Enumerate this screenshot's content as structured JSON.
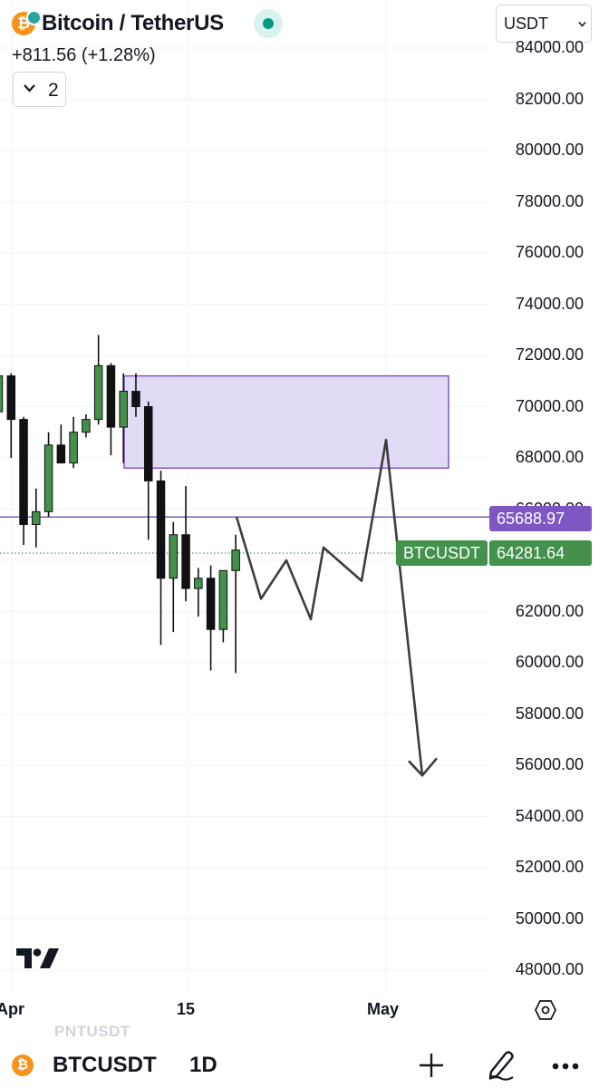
{
  "header": {
    "title": "Bitcoin / TetherUS",
    "coin_icon_glyph": "₿",
    "change": "+811.56 (+1.28%)",
    "indicator_count": "2",
    "currency": "USDT"
  },
  "price_axis": {
    "ticks": [
      "84000.00",
      "82000.00",
      "80000.00",
      "78000.00",
      "76000.00",
      "74000.00",
      "72000.00",
      "70000.00",
      "68000.00",
      "66000.00",
      "64000.00",
      "62000.00",
      "60000.00",
      "58000.00",
      "56000.00",
      "54000.00",
      "52000.00",
      "50000.00",
      "48000.00"
    ]
  },
  "time_axis": {
    "ticks": [
      "Apr",
      "15",
      "May"
    ]
  },
  "tags": {
    "line_price": "65688.97",
    "symbol": "BTCUSDT",
    "last_price": "64281.64"
  },
  "bottom_bar": {
    "ghost_symbol": "PNTUSDT",
    "symbol": "BTCUSDT",
    "interval": "1D"
  },
  "colors": {
    "up": "#43914a",
    "down": "#111111",
    "zone_fill": "#dcd5f5",
    "zone_border": "#7e57c2",
    "line_tag": "#7e57c2",
    "last_price_tag": "#43914a",
    "accent_teal": "#089981",
    "coin": "#f7931a"
  },
  "icons": [
    "bitcoin-icon",
    "status-dot-icon",
    "chevron-down-icon",
    "tradingview-logo-icon",
    "settings-hexagon-icon",
    "plus-icon",
    "pencil-icon",
    "more-dots-icon"
  ],
  "chart_data": {
    "type": "candlestick",
    "title": "Bitcoin / TetherUS",
    "interval": "1D",
    "ylim": [
      47200,
      84600
    ],
    "y_ticks": [
      48000,
      50000,
      52000,
      54000,
      56000,
      58000,
      60000,
      62000,
      64000,
      66000,
      68000,
      70000,
      72000,
      74000,
      76000,
      78000,
      80000,
      82000,
      84000
    ],
    "x_ticks": [
      "Apr",
      "15",
      "May"
    ],
    "candles": [
      {
        "o": 69800,
        "h": 71300,
        "l": 68500,
        "c": 71200
      },
      {
        "o": 71200,
        "h": 71300,
        "l": 68000,
        "c": 69500
      },
      {
        "o": 69500,
        "h": 69600,
        "l": 64600,
        "c": 65400
      },
      {
        "o": 65400,
        "h": 66800,
        "l": 64500,
        "c": 65900
      },
      {
        "o": 65900,
        "h": 69000,
        "l": 65700,
        "c": 68500
      },
      {
        "o": 68500,
        "h": 69300,
        "l": 67800,
        "c": 67800
      },
      {
        "o": 67800,
        "h": 69600,
        "l": 67600,
        "c": 69000
      },
      {
        "o": 69000,
        "h": 69700,
        "l": 68800,
        "c": 69500
      },
      {
        "o": 69500,
        "h": 72800,
        "l": 69300,
        "c": 71600
      },
      {
        "o": 71600,
        "h": 71700,
        "l": 68100,
        "c": 69200
      },
      {
        "o": 69200,
        "h": 71300,
        "l": 67800,
        "c": 70600
      },
      {
        "o": 70600,
        "h": 71300,
        "l": 69600,
        "c": 70000
      },
      {
        "o": 70000,
        "h": 70200,
        "l": 64800,
        "c": 67100
      },
      {
        "o": 67100,
        "h": 67500,
        "l": 60700,
        "c": 63300
      },
      {
        "o": 63300,
        "h": 65500,
        "l": 61200,
        "c": 65000
      },
      {
        "o": 65000,
        "h": 66900,
        "l": 62400,
        "c": 62900
      },
      {
        "o": 62900,
        "h": 63700,
        "l": 61800,
        "c": 63300
      },
      {
        "o": 63300,
        "h": 63800,
        "l": 59700,
        "c": 61300
      },
      {
        "o": 61300,
        "h": 63400,
        "l": 60800,
        "c": 63600
      },
      {
        "o": 63600,
        "h": 65000,
        "l": 59600,
        "c": 64400
      }
    ],
    "zone": {
      "y_top": 71200,
      "y_bottom": 67600
    },
    "horizontal_line": 65688.97,
    "last_price": 64281.64,
    "projection": [
      65700,
      62500,
      64000,
      61700,
      64500,
      63200,
      68700,
      55600
    ]
  }
}
